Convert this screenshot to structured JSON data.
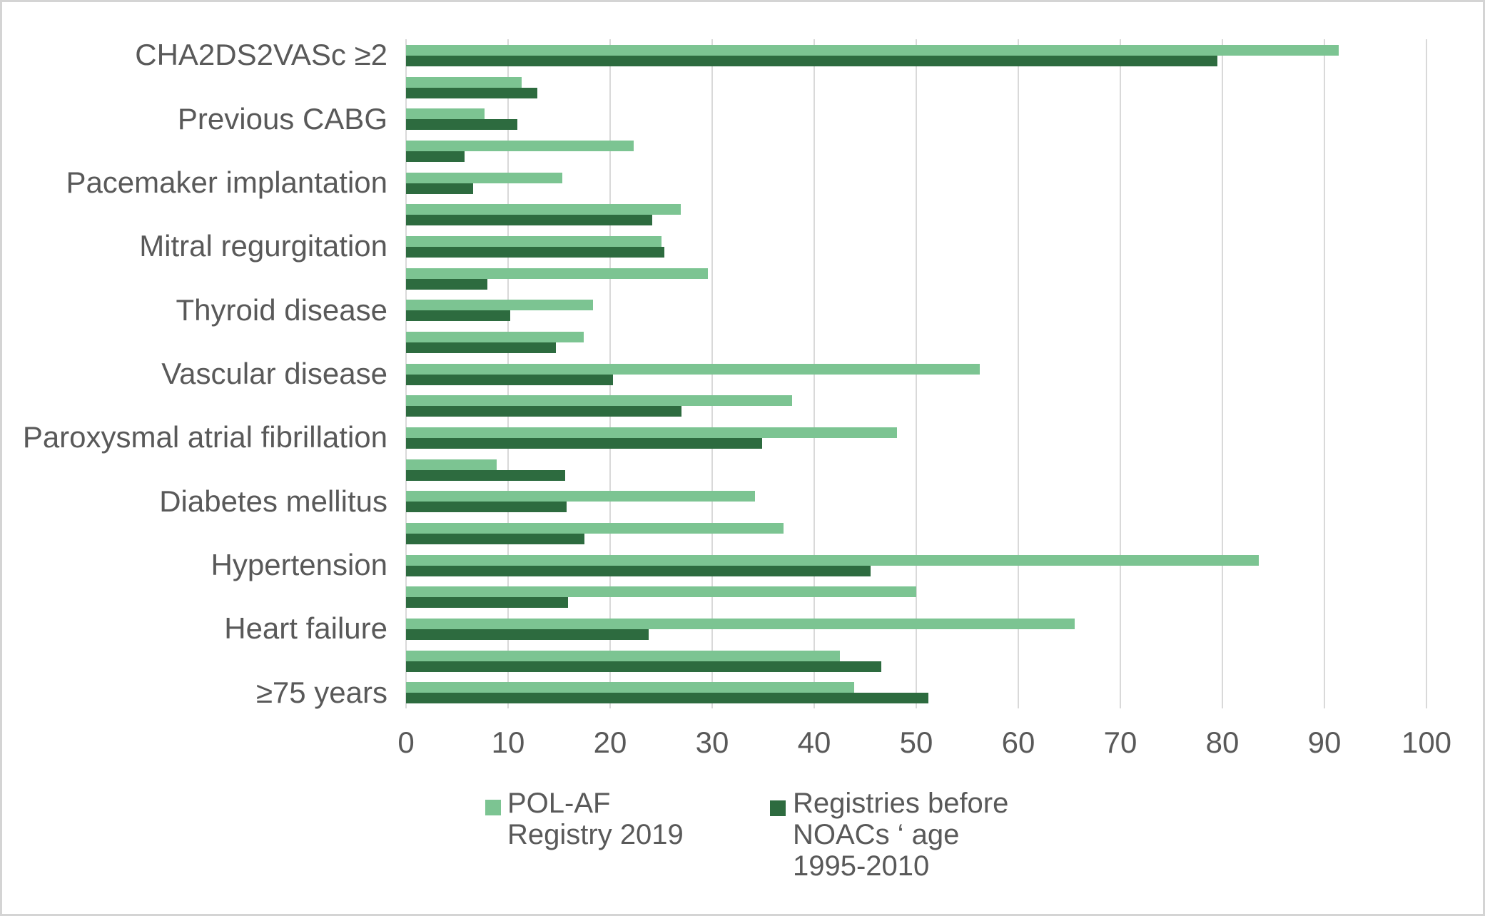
{
  "chart_data": {
    "type": "bar",
    "orientation": "horizontal",
    "title": "",
    "xlabel": "",
    "ylabel": "",
    "xlim": [
      0,
      100
    ],
    "xticks": [
      0,
      10,
      20,
      30,
      40,
      50,
      60,
      70,
      80,
      90,
      100
    ],
    "grid": "vertical-only",
    "legend_position": "bottom",
    "categories": [
      "CHA2DS2VASc ≥2",
      "",
      "Previous CABG",
      "",
      "Pacemaker implantation",
      "",
      "Mitral regurgitation",
      "",
      "Thyroid disease",
      "",
      "Vascular disease",
      "",
      "Paroxysmal atrial fibrillation",
      "",
      "Diabetes mellitus",
      "",
      "Hypertension",
      "",
      "Heart failure",
      "",
      "≥75 years"
    ],
    "series": [
      {
        "name": "POL-AF Registry 2019",
        "color": "#7cc492",
        "values": [
          91.4,
          11.3,
          7.7,
          22.3,
          15.3,
          26.9,
          25.0,
          29.6,
          18.3,
          17.4,
          56.2,
          37.8,
          48.1,
          8.9,
          34.2,
          37.0,
          83.6,
          50.0,
          65.5,
          42.5,
          43.9
        ]
      },
      {
        "name": "Registries before NOACs ‘ age 1995-2010",
        "color": "#2d6b3f",
        "values": [
          79.5,
          12.9,
          10.9,
          5.7,
          6.6,
          24.1,
          25.3,
          8.0,
          10.2,
          14.7,
          20.3,
          27.0,
          34.9,
          15.6,
          15.7,
          17.5,
          45.5,
          15.9,
          23.8,
          46.6,
          51.2
        ]
      }
    ]
  },
  "legend": {
    "items": [
      {
        "label": "POL-AF Registry 2019",
        "color": "#7cc492"
      },
      {
        "label": "Registries before NOACs ‘ age 1995-2010",
        "color": "#2d6b3f"
      }
    ]
  },
  "colors": {
    "gridline": "#d9d9d9",
    "axis_text": "#595959",
    "background": "#ffffff",
    "frame_border": "#d4d4d4"
  }
}
